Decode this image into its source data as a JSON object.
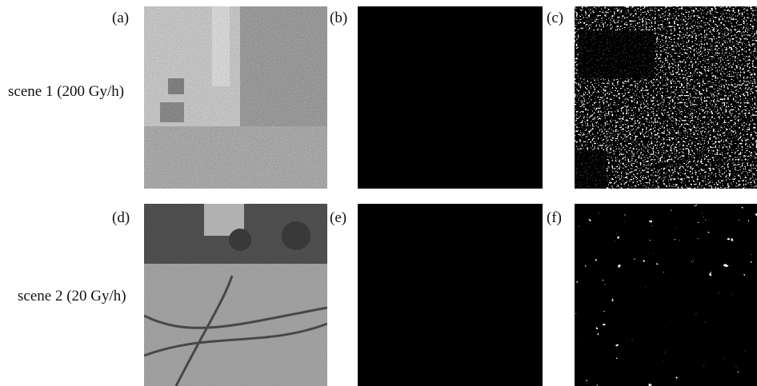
{
  "row_labels": [
    "scene 1 (200 Gy/h)",
    "scene 2 (20 Gy/h)"
  ],
  "panels": [
    {
      "label": "(a)"
    },
    {
      "label": "(b)"
    },
    {
      "label": "(c)"
    },
    {
      "label": "(d)"
    },
    {
      "label": "(e)"
    },
    {
      "label": "(f)"
    }
  ]
}
